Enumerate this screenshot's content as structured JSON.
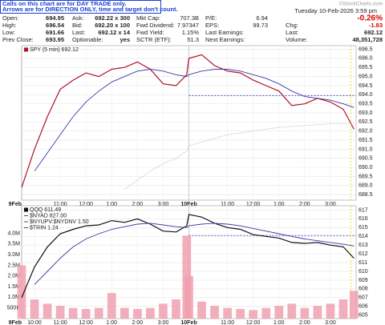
{
  "header": {
    "note": [
      "Calls on this chart are for DAY TRADE only.",
      "Arrows are for DIRECTION ONLY, time and target don't count."
    ],
    "source": "©StockCharts.com",
    "datetime": "Tuesday 10-Feb-2026 3:59 pm",
    "quote": [
      [
        {
          "label": "Open:",
          "value": "694.95"
        },
        {
          "label": "Ask:",
          "value": "692.22 x 300"
        },
        {
          "label": "Mkt Cap:",
          "value": "707.3B"
        },
        {
          "label": "P/E:",
          "value": "6.94"
        },
        {
          "value": "-0.26%"
        }
      ],
      [
        {
          "label": "High:",
          "value": "696.54"
        },
        {
          "label": "Bid:",
          "value": "692.20 x 100"
        },
        {
          "label": "Fwd Dividend:",
          "value": "7.97347"
        },
        {
          "label": "EPS:",
          "value": "99.73"
        },
        {
          "label": "Chg:",
          "value": "-1.83"
        }
      ],
      [
        {
          "label": "Low:",
          "value": "691.66"
        },
        {
          "label": "Last:",
          "value": "692.12 x 14"
        },
        {
          "label": "Fwd Yield:",
          "value": "1.15%"
        },
        {
          "label": "Last Earnings:"
        },
        {
          "label": "Last:",
          "value": "692.12"
        }
      ],
      [
        {
          "label": "Prev Close:",
          "value": "693.95"
        },
        {
          "label": "Optionable:",
          "value": "yes"
        },
        {
          "label": "SCTR (ETF):",
          "value": "51.3"
        },
        {
          "label": "Next Earnings:"
        },
        {
          "label": "Volume:",
          "value": "48,351,728"
        }
      ]
    ]
  },
  "chart_data": [
    {
      "type": "line",
      "x": [
        0,
        6,
        12,
        18,
        24,
        30,
        36,
        42,
        48,
        54,
        60,
        66,
        72,
        77,
        78,
        84,
        90,
        96,
        102,
        108,
        114,
        120,
        126,
        132,
        138,
        144,
        150,
        155
      ],
      "xlim": [
        0,
        156
      ],
      "xticks": [
        {
          "value": 0,
          "label": "9Feb"
        },
        {
          "value": 18,
          "label": "11:00"
        },
        {
          "value": 30,
          "label": "12:00"
        },
        {
          "value": 42,
          "label": "1:00"
        },
        {
          "value": 54,
          "label": "2:00"
        },
        {
          "value": 66,
          "label": "3:00"
        },
        {
          "value": 78,
          "label": "10Feb"
        },
        {
          "value": 96,
          "label": "11:00"
        },
        {
          "value": 108,
          "label": "12:00"
        },
        {
          "value": 120,
          "label": "1:00"
        },
        {
          "value": 132,
          "label": "2:00"
        },
        {
          "value": 144,
          "label": "3:00"
        }
      ],
      "ylim": [
        688.2,
        696.7
      ],
      "yticks": [
        696.5,
        {
          "value": 696,
          "label": "696.0"
        },
        695.5,
        {
          "value": 695,
          "label": "695.0"
        },
        694.5,
        {
          "value": 694,
          "label": "694.0"
        },
        693.5,
        {
          "value": 693,
          "label": "693.0"
        },
        692.5,
        {
          "value": 692,
          "label": "692.0"
        },
        691.5,
        {
          "value": 691,
          "label": "691.0"
        },
        690.5,
        {
          "value": 690,
          "label": "690.0"
        },
        689.5,
        {
          "value": 689,
          "label": "689.0"
        },
        688.5
      ],
      "grid": true,
      "ref_line": 693.95,
      "series": [
        {
          "name": "SPY (5 min) 692.12",
          "color": "#b0102a",
          "values": [
            688.9,
            691.0,
            692.8,
            694.3,
            694.8,
            695.2,
            695.0,
            695.4,
            695.5,
            695.8,
            695.4,
            694.6,
            694.5,
            695.1,
            696.0,
            696.2,
            695.6,
            695.3,
            695.2,
            694.8,
            694.5,
            694.2,
            693.4,
            693.5,
            693.8,
            693.6,
            693.2,
            692.1
          ]
        },
        {
          "color": "#3a3aa8",
          "values": [
            null,
            689.8,
            690.8,
            691.8,
            692.8,
            693.6,
            694.2,
            694.7,
            695.0,
            695.3,
            695.4,
            695.3,
            695.1,
            695.0,
            695.1,
            695.3,
            695.4,
            695.4,
            695.3,
            695.1,
            694.9,
            694.6,
            694.2,
            693.9,
            693.8,
            693.7,
            693.5,
            693.3
          ]
        },
        {
          "color": "#bbbbbb",
          "values": [
            null,
            null,
            null,
            null,
            null,
            null,
            null,
            null,
            688.8,
            689.3,
            689.8,
            690.2,
            690.5,
            690.9,
            691.2,
            691.4,
            691.6,
            691.8,
            691.9,
            692.0,
            692.1,
            692.2,
            692.25,
            692.3,
            692.35,
            692.4,
            692.4,
            692.4
          ]
        }
      ]
    },
    {
      "type": "line",
      "x": [
        0,
        6,
        12,
        18,
        24,
        30,
        36,
        42,
        48,
        54,
        60,
        66,
        72,
        77,
        78,
        84,
        90,
        96,
        102,
        108,
        114,
        120,
        126,
        132,
        138,
        144,
        150,
        155
      ],
      "xlim": [
        0,
        156
      ],
      "xticks": [
        {
          "value": 0,
          "label": "9Feb"
        },
        {
          "value": 6,
          "label": "10:00"
        },
        {
          "value": 18,
          "label": "11:00"
        },
        {
          "value": 30,
          "label": "12:00"
        },
        {
          "value": 42,
          "label": "1:00"
        },
        {
          "value": 54,
          "label": "2:00"
        },
        {
          "value": 66,
          "label": "3:00"
        },
        {
          "value": 78,
          "label": "10Feb"
        },
        {
          "value": 96,
          "label": "11:00"
        },
        {
          "value": 108,
          "label": "12:00"
        },
        {
          "value": 120,
          "label": "1:00"
        },
        {
          "value": 132,
          "label": "2:00"
        },
        {
          "value": 144,
          "label": "3:00"
        }
      ],
      "ylim": [
        604.6,
        617.5
      ],
      "yticks": [
        617,
        616,
        615,
        614,
        613,
        612,
        611,
        610,
        609,
        608,
        607,
        606,
        605
      ],
      "y2lim": [
        0,
        5300000
      ],
      "y2ticks": [
        {
          "value": 4000000,
          "label": "4.0M"
        },
        {
          "value": 3500000,
          "label": "3.5M"
        },
        {
          "value": 3000000,
          "label": "3.0M"
        },
        {
          "value": 2500000,
          "label": "2.5M"
        },
        {
          "value": 2000000,
          "label": "2.0M"
        },
        {
          "value": 1500000,
          "label": "1.5M"
        },
        {
          "value": 1000000,
          "label": "1.0M"
        },
        {
          "value": 500000,
          "label": "500K"
        }
      ],
      "grid": true,
      "ref_line": 614.1,
      "indicators": [
        "$NYAD 827.00",
        "$NYUPV:$NYDNV 1.50",
        "$TRIN 1.24"
      ],
      "series": [
        {
          "type": "bar",
          "axis": "y2",
          "color": "#f0a0ae",
          "values": [
            2500000,
            900000,
            700000,
            600000,
            500000,
            450000,
            500000,
            1200000,
            500000,
            450000,
            500000,
            700000,
            900000,
            3900000,
            2000000,
            800000,
            600000,
            500000,
            450000,
            400000,
            500000,
            600000,
            700000,
            500000,
            600000,
            700000,
            900000,
            1300000
          ]
        },
        {
          "name": "QQQ 611.49",
          "color": "#111111",
          "values": [
            607.0,
            610.5,
            612.8,
            614.3,
            614.8,
            615.2,
            615.3,
            615.8,
            615.6,
            616.0,
            615.4,
            614.6,
            614.5,
            615.2,
            616.5,
            616.2,
            615.5,
            615.0,
            614.8,
            614.2,
            614.0,
            613.8,
            613.3,
            613.2,
            613.3,
            613.0,
            612.8,
            611.5
          ]
        },
        {
          "color": "#3a3aa8",
          "values": [
            null,
            608.5,
            610.0,
            611.5,
            612.8,
            613.7,
            614.3,
            614.8,
            615.1,
            615.4,
            615.5,
            615.3,
            615.1,
            615.0,
            615.2,
            615.4,
            615.5,
            615.4,
            615.2,
            614.9,
            614.6,
            614.3,
            614.0,
            613.7,
            613.5,
            613.3,
            613.1,
            612.9
          ]
        }
      ]
    }
  ]
}
